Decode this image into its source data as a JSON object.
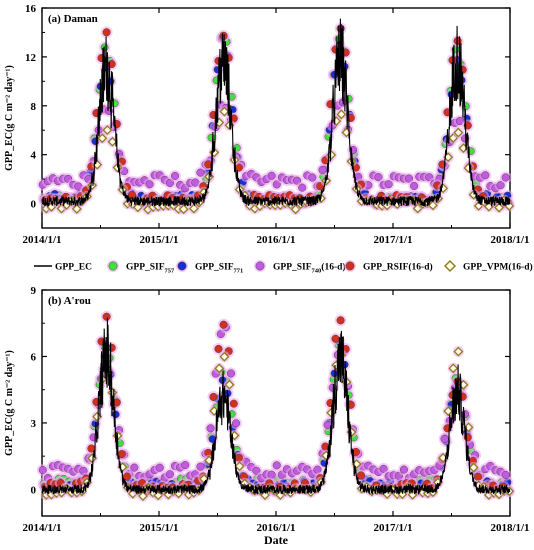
{
  "colors": {
    "ec_line": "#000000",
    "sif757": "#44dd44",
    "sif771": "#1a2fd0",
    "sif740": "#c05ae0",
    "rsif": "#d03020",
    "vpm": "#c8c070",
    "glow": "#f0a8f0"
  },
  "legend": {
    "items": [
      {
        "key": "ec",
        "label": "GPP_EC",
        "sub": "",
        "suffix": "",
        "marker": "line",
        "color": "#000000"
      },
      {
        "key": "sif757",
        "label": "GPP_SIF",
        "sub": "757",
        "suffix": "",
        "marker": "circle",
        "color": "#44dd44"
      },
      {
        "key": "sif771",
        "label": "GPP_SIF",
        "sub": "771",
        "suffix": "",
        "marker": "circle",
        "color": "#1a2fd0"
      },
      {
        "key": "sif740",
        "label": "GPP_SIF",
        "sub": "740",
        "suffix": "(16-d)",
        "marker": "circle",
        "color": "#c05ae0"
      },
      {
        "key": "rsif",
        "label": "GPP_RSIF(16-d)",
        "sub": "",
        "suffix": "",
        "marker": "circle",
        "color": "#d03020"
      },
      {
        "key": "vpm",
        "label": "GPP_VPM(16-d)",
        "sub": "",
        "suffix": "",
        "marker": "diamond",
        "color": "#c8c070"
      }
    ]
  },
  "chart_data": [
    {
      "type": "line",
      "panel_label": "(a) Daman",
      "ylabel": "GPP_EC(g C m⁻² day⁻¹)",
      "xlabel": "",
      "x_ticks": [
        "2014/1/1",
        "2015/1/1",
        "2016/1/1",
        "2017/1/1",
        "2018/1/1"
      ],
      "y_ticks": [
        0,
        4,
        8,
        12,
        16
      ],
      "xlim": [
        "2014-01-01",
        "2018-01-01"
      ],
      "ylim": [
        -2,
        16
      ],
      "season_peaks": [
        {
          "year": 2014,
          "ec_peak": 14.3,
          "sif757": 12.8,
          "sif771": 11.5,
          "sif740": 8.0,
          "rsif": 13.8,
          "vpm": 6.3
        },
        {
          "year": 2015,
          "ec_peak": 14.8,
          "sif757": 13.8,
          "sif771": 13.5,
          "sif740": 8.5,
          "rsif": 14.0,
          "vpm": 7.8
        },
        {
          "year": 2016,
          "ec_peak": 15.3,
          "sif757": 13.8,
          "sif771": 12.8,
          "sif740": 8.0,
          "rsif": 14.7,
          "vpm": 7.5
        },
        {
          "year": 2017,
          "ec_peak": 15.2,
          "sif757": 12.5,
          "sif771": 11.5,
          "sif740": 7.0,
          "rsif": 13.5,
          "vpm": 6.2
        }
      ],
      "winter_level": {
        "ec": 0.2,
        "sif757": 0.3,
        "sif771": 0.4,
        "sif740": 1.8,
        "rsif": 0.3,
        "vpm": -0.1
      }
    },
    {
      "type": "line",
      "panel_label": "(b) A'rou",
      "ylabel": "GPP_EC(g C m⁻² day⁻¹)",
      "xlabel": "Date",
      "x_ticks": [
        "2014/1/1",
        "2015/1/1",
        "2016/1/1",
        "2017/1/1",
        "2018/1/1"
      ],
      "y_ticks": [
        0,
        3,
        6,
        9
      ],
      "xlim": [
        "2014-01-01",
        "2018-01-01"
      ],
      "ylim": [
        -1.2,
        9
      ],
      "season_peaks": [
        {
          "year": 2014,
          "ec_peak": 7.8,
          "sif757": 6.5,
          "sif771": 6.0,
          "sif740": 5.5,
          "rsif": 7.7,
          "vpm": 5.5
        },
        {
          "year": 2015,
          "ec_peak": 5.5,
          "sif757": 5.2,
          "sif771": 5.0,
          "sif740": 7.3,
          "rsif": 7.6,
          "vpm": 6.0
        },
        {
          "year": 2016,
          "ec_peak": 7.6,
          "sif757": 6.8,
          "sif771": 6.5,
          "sif740": 6.3,
          "rsif": 7.7,
          "vpm": 6.3
        },
        {
          "year": 2017,
          "ec_peak": 5.6,
          "sif757": 5.0,
          "sif771": 4.6,
          "sif740": 4.5,
          "rsif": 5.0,
          "vpm": 6.3
        }
      ],
      "winter_level": {
        "ec": 0.0,
        "sif757": 0.3,
        "sif771": 0.2,
        "sif740": 0.8,
        "rsif": 0.1,
        "vpm": -0.1
      }
    }
  ]
}
